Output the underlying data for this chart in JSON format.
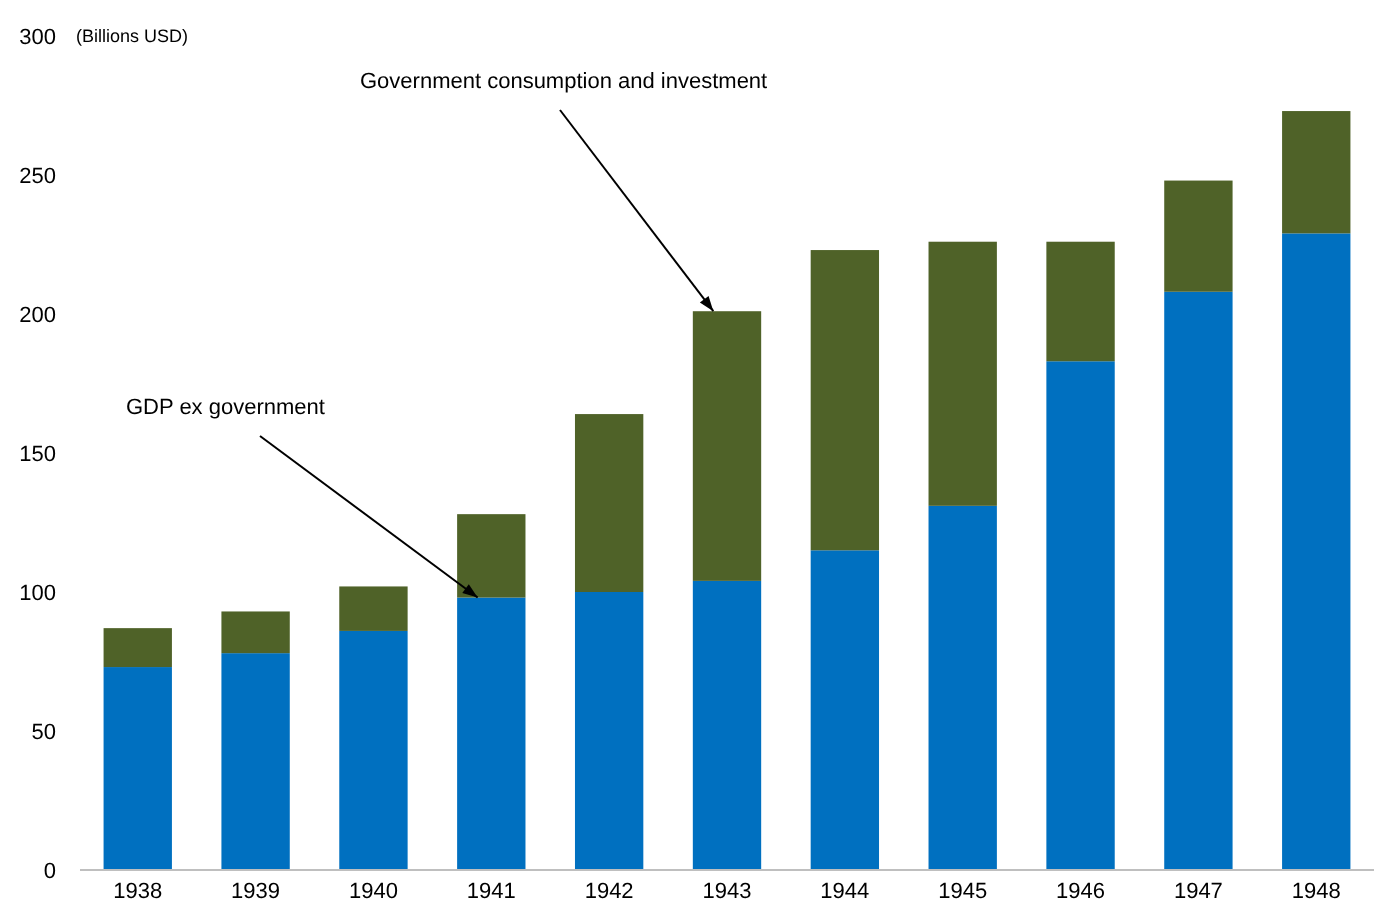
{
  "chart_data": {
    "type": "bar",
    "stacked": true,
    "ylabel": "(Billions USD)",
    "categories": [
      "1938",
      "1939",
      "1940",
      "1941",
      "1942",
      "1943",
      "1944",
      "1945",
      "1946",
      "1947",
      "1948"
    ],
    "series": [
      {
        "color": "#0070c0",
        "values": [
          73,
          78,
          86,
          98,
          100,
          104,
          115,
          131,
          183,
          208,
          229
        ]
      },
      {
        "color": "#4f6228",
        "values": [
          14,
          15,
          16,
          30,
          64,
          97,
          108,
          95,
          43,
          40,
          44
        ]
      }
    ],
    "ylim": [
      0,
      300
    ],
    "yticks": [
      0,
      50,
      100,
      150,
      200,
      250,
      300
    ],
    "annotations": [
      {
        "text": "GDP ex government",
        "x": "1941",
        "y": 98
      },
      {
        "text": "Government consumption and investment",
        "x": "1943",
        "y": 201
      }
    ]
  }
}
